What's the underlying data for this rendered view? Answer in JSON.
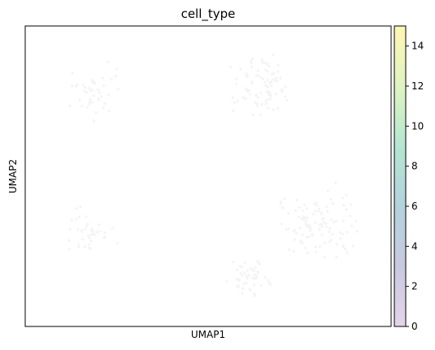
{
  "chart_data": {
    "type": "scatter",
    "title": "cell_type",
    "xlabel": "UMAP1",
    "ylabel": "UMAP2",
    "x_ticks": [],
    "y_ticks": [],
    "grid": false,
    "points_visible": "near-invisible (very faint, almost white markers)",
    "colorbar": {
      "range": [
        0,
        15
      ],
      "ticks": [
        "0",
        "2",
        "4",
        "6",
        "8",
        "10",
        "12",
        "14"
      ],
      "colormap": "viridis (faded)",
      "placement": "right"
    },
    "clusters": [
      {
        "x": 0.2,
        "y": 0.78,
        "spread": 0.1,
        "n": 45
      },
      {
        "x": 0.18,
        "y": 0.32,
        "spread": 0.09,
        "n": 40
      },
      {
        "x": 0.65,
        "y": 0.8,
        "spread": 0.11,
        "n": 90
      },
      {
        "x": 0.8,
        "y": 0.35,
        "spread": 0.14,
        "n": 110
      },
      {
        "x": 0.62,
        "y": 0.16,
        "spread": 0.08,
        "n": 55
      }
    ]
  },
  "colors": {
    "axis": "#000000",
    "point": "#f4f4f4",
    "colormap_stops": [
      "#e6d3eb",
      "#c7c9e0",
      "#b3d2de",
      "#b4e6d0",
      "#dff4c2",
      "#fff6b3"
    ]
  }
}
